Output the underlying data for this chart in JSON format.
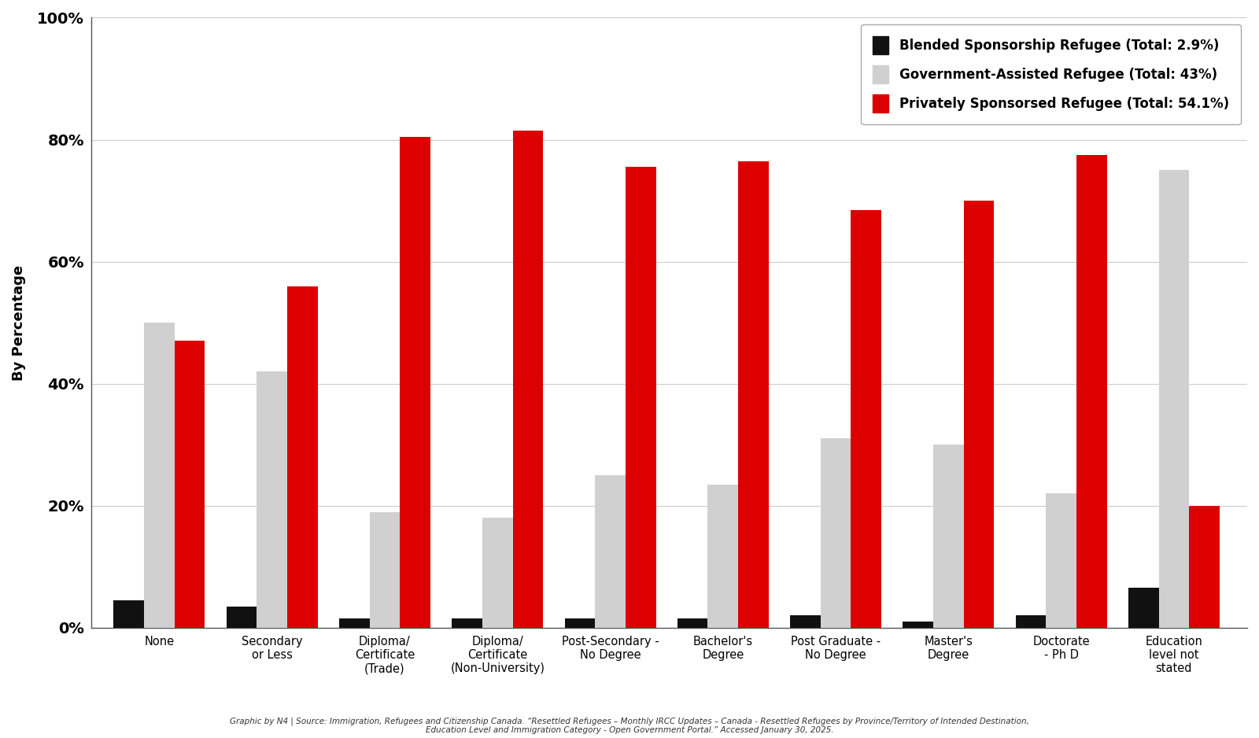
{
  "ylabel": "By Percentage",
  "categories": [
    "None",
    "Secondary\nor Less",
    "Diploma/\nCertificate\n(Trade)",
    "Diploma/\nCertificate\n(Non-University)",
    "Post-Secondary -\nNo Degree",
    "Bachelor's\nDegree",
    "Post Graduate -\nNo Degree",
    "Master's\nDegree",
    "Doctorate\n- Ph D",
    "Education\nlevel not\nstated"
  ],
  "blended": [
    4.5,
    3.5,
    1.5,
    1.5,
    1.5,
    1.5,
    2.0,
    1.0,
    2.0,
    6.5
  ],
  "government": [
    50.0,
    42.0,
    19.0,
    18.0,
    25.0,
    23.5,
    31.0,
    30.0,
    22.0,
    75.0
  ],
  "private": [
    47.0,
    56.0,
    80.5,
    81.5,
    75.5,
    76.5,
    68.5,
    70.0,
    77.5,
    20.0
  ],
  "blended_color": "#111111",
  "government_color": "#d0d0d0",
  "private_color": "#dd0000",
  "legend_labels": [
    "Blended Sponsorship Refugee (Total: 2.9%)",
    "Government-Assisted Refugee (Total: 43%)",
    "Privately Sponsorsed Refugee (Total: 54.1%)"
  ],
  "source_text": "Graphic by N4 | Source: Immigration, Refugees and Citizenship Canada. “Resettled Refugees – Monthly IRCC Updates – Canada - Resettled Refugees by Province/Territory of Intended Destination,\nEducation Level and Immigration Category - Open Government Portal.” Accessed January 30, 2025.",
  "background_color": "#ffffff",
  "ylim": [
    0,
    100
  ],
  "yticks": [
    0,
    20,
    40,
    60,
    80,
    100
  ],
  "ytick_labels": [
    "0%",
    "20%",
    "40%",
    "60%",
    "80%",
    "100%"
  ]
}
